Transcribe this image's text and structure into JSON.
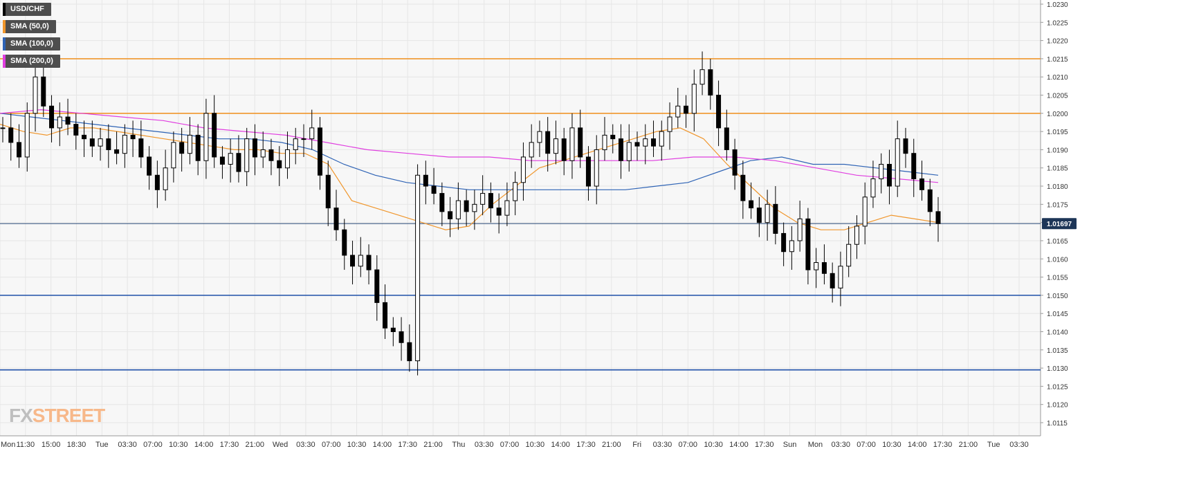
{
  "chart_data": {
    "type": "candlestick",
    "symbol": "USD/CHF",
    "ylim": [
      1.011,
      1.023
    ],
    "y_ticks": [
      "1.0230",
      "1.0225",
      "1.0220",
      "1.0215",
      "1.0210",
      "1.0205",
      "1.0200",
      "1.0195",
      "1.0190",
      "1.0185",
      "1.0180",
      "1.0175",
      "1.0170",
      "1.0165",
      "1.0160",
      "1.0155",
      "1.0150",
      "1.0145",
      "1.0140",
      "1.0135",
      "1.0130",
      "1.0125",
      "1.0120",
      "1.0115"
    ],
    "x_ticks": [
      "Mon",
      "11:30",
      "15:00",
      "18:30",
      "Tue",
      "03:30",
      "07:00",
      "10:30",
      "14:00",
      "17:30",
      "21:00",
      "Wed",
      "03:30",
      "07:00",
      "10:30",
      "14:00",
      "17:30",
      "21:00",
      "Thu",
      "03:30",
      "07:00",
      "10:30",
      "14:00",
      "17:30",
      "21:00",
      "Fri",
      "03:30",
      "07:00",
      "10:30",
      "14:00",
      "17:30",
      "Sun",
      "Mon",
      "03:30",
      "07:00",
      "10:30",
      "14:00",
      "17:30",
      "21:00",
      "Tue",
      "03:30"
    ],
    "last_price": "1.01697",
    "horizontal_levels": [
      {
        "value": 1.0215,
        "color": "#f0962c"
      },
      {
        "value": 1.02,
        "color": "#f0962c"
      },
      {
        "value": 1.015,
        "color": "#1e4fa8"
      },
      {
        "value": 1.01295,
        "color": "#1e4fa8"
      }
    ],
    "close_path": [
      1.0196,
      1.0192,
      1.0188,
      1.02,
      1.021,
      1.0202,
      1.0196,
      1.0199,
      1.0197,
      1.0194,
      1.0193,
      1.0191,
      1.0193,
      1.019,
      1.0189,
      1.0194,
      1.0193,
      1.0188,
      1.0183,
      1.0179,
      1.0185,
      1.0192,
      1.0189,
      1.0194,
      1.0187,
      1.02,
      1.0188,
      1.0186,
      1.0189,
      1.0184,
      1.0193,
      1.0188,
      1.019,
      1.0187,
      1.0185,
      1.019,
      1.0193,
      1.0193,
      1.0196,
      1.0183,
      1.0174,
      1.0168,
      1.0161,
      1.0158,
      1.0161,
      1.0157,
      1.0148,
      1.0141,
      1.014,
      1.0137,
      1.0132,
      1.0183,
      1.018,
      1.0178,
      1.0173,
      1.0171,
      1.0176,
      1.0173,
      1.0175,
      1.0178,
      1.0174,
      1.0172,
      1.0176,
      1.0181,
      1.0188,
      1.0192,
      1.0195,
      1.0189,
      1.0193,
      1.0187,
      1.0196,
      1.0188,
      1.018,
      1.019,
      1.0194,
      1.0193,
      1.0187,
      1.0192,
      1.0191,
      1.0193,
      1.0191,
      1.0195,
      1.0199,
      1.0202,
      1.02,
      1.0208,
      1.0212,
      1.0205,
      1.0196,
      1.019,
      1.0183,
      1.0176,
      1.0174,
      1.017,
      1.0175,
      1.0167,
      1.0162,
      1.0165,
      1.0171,
      1.0157,
      1.0159,
      1.0156,
      1.0152,
      1.0158,
      1.0164,
      1.0169,
      1.0177,
      1.0182,
      1.0186,
      1.018,
      1.0193,
      1.0189,
      1.0182,
      1.0179,
      1.0173,
      1.01697
    ],
    "series": [
      {
        "name": "SMA (50,0)",
        "color": "#f0962c",
        "values": [
          1.0197,
          1.0195,
          1.0194,
          1.0196,
          1.0196,
          1.0195,
          1.0194,
          1.0193,
          1.0192,
          1.0191,
          1.019,
          1.019,
          1.0189,
          1.0189,
          1.0186,
          1.0176,
          1.0174,
          1.0172,
          1.017,
          1.0168,
          1.0169,
          1.0175,
          1.018,
          1.0185,
          1.0187,
          1.0189,
          1.0191,
          1.0193,
          1.0195,
          1.0196,
          1.0193,
          1.0186,
          1.018,
          1.0174,
          1.017,
          1.0168,
          1.0168,
          1.017,
          1.0172,
          1.0171,
          1.017
        ]
      },
      {
        "name": "SMA (100,0)",
        "color": "#2e63b5",
        "values": [
          1.02,
          1.0199,
          1.0198,
          1.0197,
          1.0196,
          1.0195,
          1.0194,
          1.0193,
          1.0193,
          1.0192,
          1.019,
          1.0186,
          1.0183,
          1.0181,
          1.018,
          1.0179,
          1.0179,
          1.0179,
          1.0179,
          1.0179,
          1.0179,
          1.018,
          1.0181,
          1.0184,
          1.0187,
          1.0188,
          1.0186,
          1.0186,
          1.0185,
          1.0184,
          1.0183
        ]
      },
      {
        "name": "SMA (200,0)",
        "color": "#e03ee0",
        "values": [
          1.02,
          1.0201,
          1.02,
          1.0199,
          1.0198,
          1.0196,
          1.0195,
          1.0194,
          1.0192,
          1.019,
          1.0189,
          1.0188,
          1.0188,
          1.0187,
          1.0187,
          1.0187,
          1.0187,
          1.0188,
          1.0188,
          1.0187,
          1.0185,
          1.0183,
          1.0182,
          1.0181
        ]
      }
    ],
    "legend_placement": "top-left",
    "grid": true,
    "bullish_color": "#ffffff",
    "bearish_color": "#000000"
  },
  "watermark": {
    "part1": "FX",
    "part2": "STREET"
  }
}
